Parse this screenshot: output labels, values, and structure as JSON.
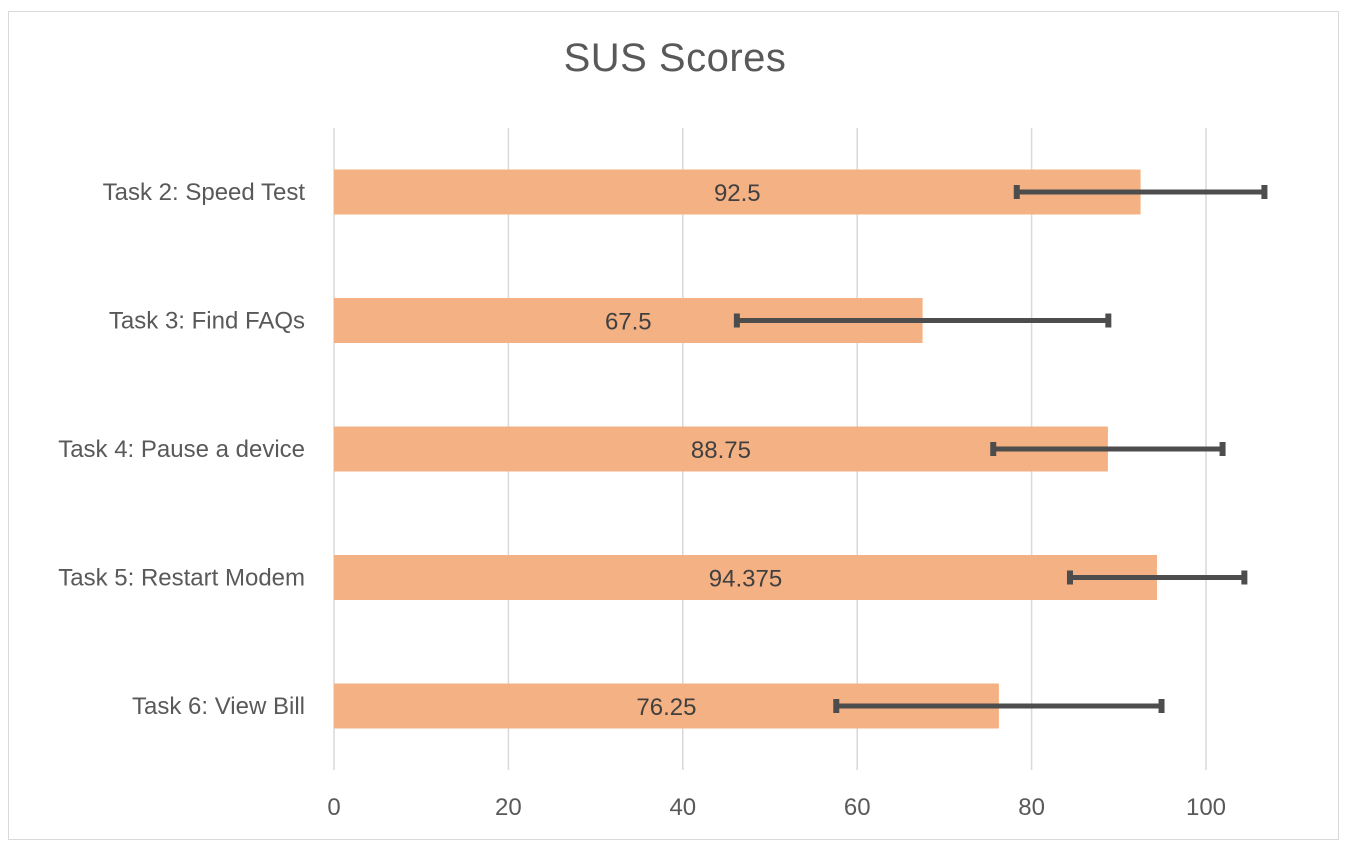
{
  "chart_data": {
    "type": "bar",
    "orientation": "horizontal",
    "title": "SUS Scores",
    "xlabel": "",
    "ylabel": "",
    "categories": [
      "Task 2: Speed Test",
      "Task 3: Find FAQs",
      "Task 4: Pause a device",
      "Task 5: Restart Modem",
      "Task 6: View Bill"
    ],
    "values": [
      92.5,
      67.5,
      88.75,
      94.375,
      76.25
    ],
    "data_labels": [
      "92.5",
      "67.5",
      "88.75",
      "94.375",
      "76.25"
    ],
    "error_bars": [
      {
        "low": 78.3,
        "high": 106.7
      },
      {
        "low": 46.2,
        "high": 88.8
      },
      {
        "low": 75.6,
        "high": 101.9
      },
      {
        "low": 84.4,
        "high": 104.4
      },
      {
        "low": 57.6,
        "high": 94.9
      }
    ],
    "xlim": [
      0,
      100
    ],
    "xticks": [
      0,
      20,
      40,
      60,
      80,
      100
    ],
    "grid": true,
    "legend": "none",
    "colors": {
      "bar": "#f4b183",
      "error_bar": "#4d4d4d",
      "grid": "#d9d9d9",
      "text": "#595959"
    }
  }
}
